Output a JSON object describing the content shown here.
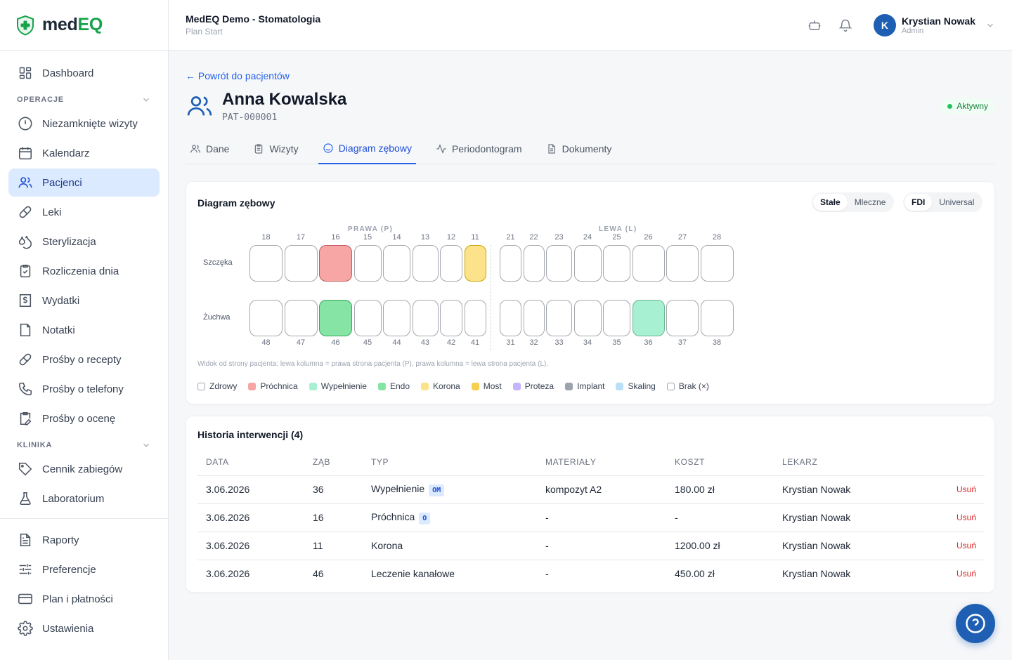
{
  "app": {
    "logo_prefix": "med",
    "logo_suffix": "EQ",
    "org_name": "MedEQ Demo - Stomatologia",
    "plan": "Plan Start"
  },
  "user": {
    "initial": "K",
    "name": "Krystian Nowak",
    "role": "Admin"
  },
  "sidebar": {
    "dashboard": "Dashboard",
    "section_ops": "OPERACJE",
    "ops": [
      "Niezamknięte wizyty",
      "Kalendarz",
      "Pacjenci",
      "Leki",
      "Sterylizacja",
      "Rozliczenia dnia",
      "Wydatki",
      "Notatki",
      "Prośby o recepty",
      "Prośby o telefony",
      "Prośby o ocenę"
    ],
    "section_clinic": "KLINIKA",
    "clinic": [
      "Cennik zabiegów",
      "Laboratorium"
    ],
    "bottom": [
      "Raporty",
      "Preferencje",
      "Plan i płatności",
      "Ustawienia"
    ]
  },
  "patient": {
    "back": "← Powrót do pacjentów",
    "name": "Anna Kowalska",
    "id": "PAT-000001",
    "status": "Aktywny"
  },
  "tabs": [
    "Dane",
    "Wizyty",
    "Diagram zębowy",
    "Periodontogram",
    "Dokumenty"
  ],
  "diagram": {
    "title": "Diagram zębowy",
    "dentition_options": [
      "Stałe",
      "Mleczne"
    ],
    "dentition_selected": "Stałe",
    "notation_options": [
      "FDI",
      "Universal"
    ],
    "notation_selected": "FDI",
    "right_label": "PRAWA (P)",
    "left_label": "LEWA (L)",
    "row_upper": "Szczęka",
    "row_lower": "Żuchwa",
    "upper_right": [
      "18",
      "17",
      "16",
      "15",
      "14",
      "13",
      "12",
      "11"
    ],
    "upper_left": [
      "21",
      "22",
      "23",
      "24",
      "25",
      "26",
      "27",
      "28"
    ],
    "lower_right": [
      "48",
      "47",
      "46",
      "45",
      "44",
      "43",
      "42",
      "41"
    ],
    "lower_left": [
      "31",
      "32",
      "33",
      "34",
      "35",
      "36",
      "37",
      "38"
    ],
    "tooth_status": {
      "16": "caries",
      "11": "crown",
      "46": "endo",
      "36": "filling"
    },
    "hint": "Widok od strony pacjenta: lewa kolumna = prawa strona pacjenta (P), prawa kolumna = lewa strona pacjenta (L).",
    "legend": [
      {
        "label": "Zdrowy",
        "color": "#ffffff"
      },
      {
        "label": "Próchnica",
        "color": "#f8a5a5"
      },
      {
        "label": "Wypełnienie",
        "color": "#a7f0d2"
      },
      {
        "label": "Endo",
        "color": "#86e5a4"
      },
      {
        "label": "Korona",
        "color": "#fce28a"
      },
      {
        "label": "Most",
        "color": "#f6cf4f"
      },
      {
        "label": "Proteza",
        "color": "#c4b5fd"
      },
      {
        "label": "Implant",
        "color": "#9ca3af"
      },
      {
        "label": "Skaling",
        "color": "#bae0f8"
      },
      {
        "label": "Brak (×)",
        "color": "#ffffff"
      }
    ]
  },
  "history": {
    "title": "Historia interwencji (4)",
    "columns": [
      "DATA",
      "ZĄB",
      "TYP",
      "MATERIAŁY",
      "KOSZT",
      "LEKARZ"
    ],
    "delete_label": "Usuń",
    "rows": [
      {
        "date": "3.06.2026",
        "tooth": "36",
        "type": "Wypełnienie",
        "code": "OM",
        "materials": "kompozyt A2",
        "cost": "180.00 zł",
        "doctor": "Krystian Nowak"
      },
      {
        "date": "3.06.2026",
        "tooth": "16",
        "type": "Próchnica",
        "code": "O",
        "materials": "-",
        "cost": "-",
        "doctor": "Krystian Nowak"
      },
      {
        "date": "3.06.2026",
        "tooth": "11",
        "type": "Korona",
        "code": "",
        "materials": "-",
        "cost": "1200.00 zł",
        "doctor": "Krystian Nowak"
      },
      {
        "date": "3.06.2026",
        "tooth": "46",
        "type": "Leczenie kanałowe",
        "code": "",
        "materials": "-",
        "cost": "450.00 zł",
        "doctor": "Krystian Nowak"
      }
    ]
  },
  "colors": {
    "accent": "#2563eb",
    "brand_green": "#16a34a",
    "danger": "#dc2626"
  }
}
